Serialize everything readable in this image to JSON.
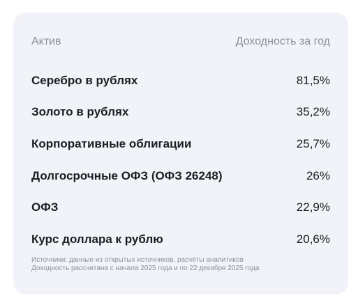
{
  "table": {
    "header": {
      "asset_label": "Актив",
      "return_label": "Доходность за год"
    },
    "rows": [
      {
        "name": "Серебро в рублях",
        "value": "81,5%"
      },
      {
        "name": "Золото в рублях",
        "value": "35,2%"
      },
      {
        "name": "Корпоративные облигации",
        "value": "25,7%"
      },
      {
        "name": "Долгосрочные ОФЗ (ОФЗ 26248)",
        "value": "26%"
      },
      {
        "name": "ОФЗ",
        "value": "22,9%"
      },
      {
        "name": "Курс доллара к рублю",
        "value": "20,6%"
      }
    ]
  },
  "footnote": {
    "line1": "Источники: данные из открытых источников, расчёты аналитиков",
    "line2": "Доходность рассчитана с начала 2025 года и по 22 декабря 2025 года"
  },
  "colors": {
    "card_background": "#f1f3f8",
    "muted_text": "#8a9099",
    "main_text": "#1b1d22"
  }
}
